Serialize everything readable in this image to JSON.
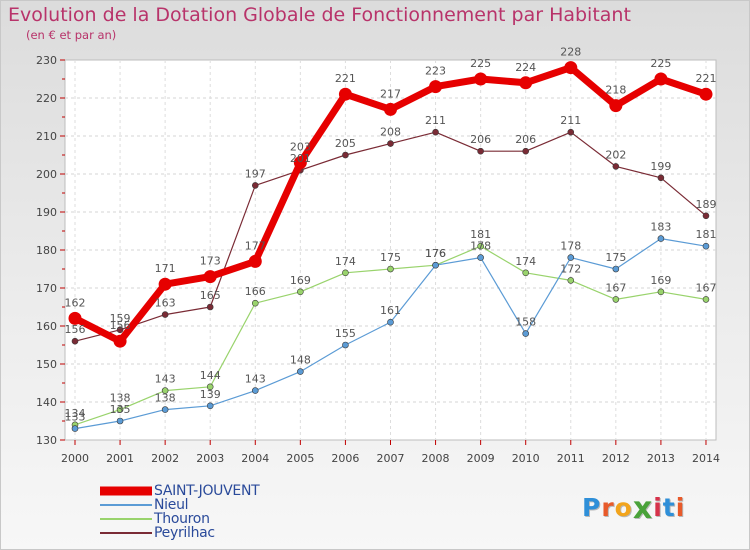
{
  "header": {
    "title": "Evolution de la Dotation Globale de Fonctionnement par Habitant",
    "subtitle": "(en € et par an)"
  },
  "brand": {
    "letters": [
      {
        "char": "P",
        "color": "#2f8fd8"
      },
      {
        "char": "r",
        "color": "#e85a2a"
      },
      {
        "char": "o",
        "color": "#f2a41c"
      },
      {
        "char": "x",
        "color": "#4aa23a"
      },
      {
        "char": "i",
        "color": "#d6324a"
      },
      {
        "char": "t",
        "color": "#2f8fd8"
      },
      {
        "char": "i",
        "color": "#e85a2a"
      }
    ]
  },
  "chart_data": {
    "type": "line",
    "title": "Evolution de la Dotation Globale de Fonctionnement par Habitant",
    "subtitle": "(en € et par an)",
    "xlabel": "",
    "ylabel": "",
    "x": [
      "2000",
      "2001",
      "2002",
      "2003",
      "2004",
      "2005",
      "2006",
      "2007",
      "2008",
      "2009",
      "2010",
      "2011",
      "2012",
      "2013",
      "2014"
    ],
    "ylim": [
      130,
      230
    ],
    "yticks": [
      "130",
      "140",
      "150",
      "160",
      "170",
      "180",
      "190",
      "200",
      "210",
      "220",
      "230"
    ],
    "grid": true,
    "legend_position": "bottom-left",
    "series": [
      {
        "name": "SAINT-JOUVENT",
        "color": "#e60000",
        "values": [
          162,
          156,
          171,
          173,
          177,
          203,
          221,
          217,
          223,
          225,
          224,
          228,
          218,
          225,
          221
        ],
        "labels": [
          "162",
          "156",
          "171",
          "173",
          "177",
          "203",
          "221",
          "217",
          "223",
          "225",
          "224",
          "228",
          "218",
          "225",
          "221"
        ]
      },
      {
        "name": "Nieul",
        "color": "#5b9bd5",
        "values": [
          133,
          135,
          138,
          139,
          143,
          148,
          155,
          161,
          176,
          178,
          158,
          178,
          175,
          183,
          181
        ],
        "labels": [
          "133",
          "135",
          "138",
          "139",
          "143",
          "148",
          "155",
          "161",
          "176",
          "178",
          "158",
          "178",
          "175",
          "183",
          "181"
        ]
      },
      {
        "name": "Thouron",
        "color": "#99d36c",
        "values": [
          134,
          138,
          143,
          144,
          166,
          169,
          174,
          175,
          176,
          181,
          174,
          172,
          167,
          169,
          167
        ],
        "labels": [
          "134",
          "138",
          "143",
          "144",
          "166",
          "169",
          "174",
          "175",
          "176",
          "181",
          "174",
          "172",
          "167",
          "169",
          "167"
        ]
      },
      {
        "name": "Peyrilhac",
        "color": "#7a2b35",
        "values": [
          156,
          159,
          163,
          165,
          197,
          201,
          205,
          208,
          211,
          206,
          206,
          211,
          202,
          199,
          189
        ],
        "labels": [
          "156",
          "159",
          "163",
          "165",
          "197",
          "201",
          "205",
          "208",
          "211",
          "206",
          "206",
          "211",
          "202",
          "199",
          "189"
        ]
      }
    ]
  }
}
